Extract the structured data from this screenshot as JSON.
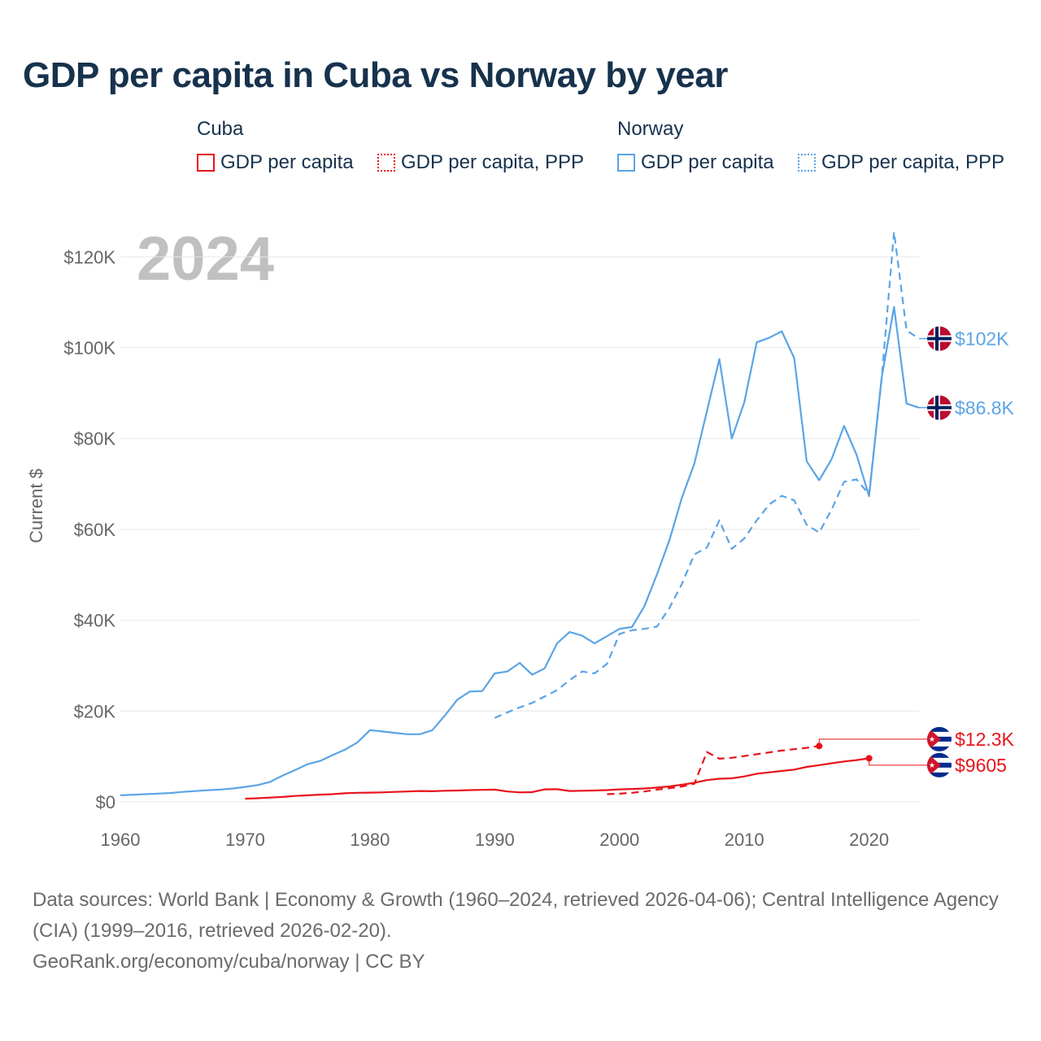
{
  "title": "GDP per capita in Cuba vs Norway by year",
  "legend": {
    "groups": [
      {
        "name": "Cuba",
        "color": "#e8131b",
        "items": [
          {
            "label": "GDP per capita",
            "style": "solid"
          },
          {
            "label": "GDP per capita, PPP",
            "style": "dotted"
          }
        ]
      },
      {
        "name": "Norway",
        "color": "#5ba4e6",
        "items": [
          {
            "label": "GDP per capita",
            "style": "solid"
          },
          {
            "label": "GDP per capita, PPP",
            "style": "dotted"
          }
        ]
      }
    ]
  },
  "chart_data": {
    "type": "line",
    "year_label": "2024",
    "ylabel": "Current $",
    "xlim": [
      1960,
      2024
    ],
    "ylim": [
      0,
      130000
    ],
    "x_ticks": [
      1960,
      1970,
      1980,
      1990,
      2000,
      2010,
      2020
    ],
    "x_tick_labels": [
      "1960",
      "1970",
      "1980",
      "1990",
      "2000",
      "2010",
      "2020"
    ],
    "y_ticks": [
      0,
      20000,
      40000,
      60000,
      80000,
      100000,
      120000
    ],
    "y_tick_labels": [
      "$0",
      "$20K",
      "$40K",
      "$60K",
      "$80K",
      "$100K",
      "$120K"
    ],
    "series": [
      {
        "name": "Norway GDP per capita",
        "color": "#5ba4e6",
        "dash": false,
        "x": [
          1960,
          1961,
          1962,
          1963,
          1964,
          1965,
          1966,
          1967,
          1968,
          1969,
          1970,
          1971,
          1972,
          1973,
          1974,
          1975,
          1976,
          1977,
          1978,
          1979,
          1980,
          1981,
          1982,
          1983,
          1984,
          1985,
          1986,
          1987,
          1988,
          1989,
          1990,
          1991,
          1992,
          1993,
          1994,
          1995,
          1996,
          1997,
          1998,
          1999,
          2000,
          2001,
          2002,
          2003,
          2004,
          2005,
          2006,
          2007,
          2008,
          2009,
          2010,
          2011,
          2012,
          2013,
          2014,
          2015,
          2016,
          2017,
          2018,
          2019,
          2020,
          2021,
          2022,
          2023,
          2024
        ],
        "y": [
          1450,
          1580,
          1700,
          1820,
          1960,
          2200,
          2380,
          2580,
          2730,
          2960,
          3300,
          3700,
          4400,
          5800,
          7000,
          8300,
          9000,
          10300,
          11500,
          13100,
          15800,
          15500,
          15200,
          14900,
          14900,
          15800,
          19000,
          22500,
          24300,
          24400,
          28300,
          28700,
          30600,
          28000,
          29400,
          34900,
          37400,
          36600,
          34900,
          36500,
          38100,
          38500,
          43100,
          50100,
          57600,
          67000,
          74500,
          86000,
          97500,
          80000,
          88000,
          101200,
          102200,
          103600,
          97700,
          75000,
          70800,
          75500,
          82800,
          76400,
          67300,
          93300,
          109000,
          87700,
          86800
        ],
        "end_label": "$86.8K"
      },
      {
        "name": "Norway GDP per capita, PPP",
        "color": "#5ba4e6",
        "dash": true,
        "x": [
          1990,
          1991,
          1992,
          1993,
          1994,
          1995,
          1996,
          1997,
          1998,
          1999,
          2000,
          2001,
          2002,
          2003,
          2004,
          2005,
          2006,
          2007,
          2008,
          2009,
          2010,
          2011,
          2012,
          2013,
          2014,
          2015,
          2016,
          2017,
          2018,
          2019,
          2020,
          2021,
          2022,
          2023,
          2024
        ],
        "y": [
          18500,
          19700,
          20800,
          21800,
          23200,
          24600,
          26800,
          28700,
          28300,
          30400,
          37000,
          37800,
          38100,
          38600,
          42700,
          48000,
          54500,
          56000,
          62000,
          55700,
          58000,
          62000,
          65500,
          67400,
          66400,
          61000,
          59300,
          64400,
          70500,
          71000,
          67700,
          93000,
          125500,
          103800,
          102000
        ],
        "end_label": "$102K"
      },
      {
        "name": "Cuba GDP per capita",
        "color": "#e8131b",
        "dash": false,
        "x": [
          1970,
          1971,
          1972,
          1973,
          1974,
          1975,
          1976,
          1977,
          1978,
          1979,
          1980,
          1981,
          1982,
          1983,
          1984,
          1985,
          1986,
          1987,
          1988,
          1989,
          1990,
          1991,
          1992,
          1993,
          1994,
          1995,
          1996,
          1997,
          1998,
          1999,
          2000,
          2001,
          2002,
          2003,
          2004,
          2005,
          2006,
          2007,
          2008,
          2009,
          2010,
          2011,
          2012,
          2013,
          2014,
          2015,
          2016,
          2017,
          2018,
          2019,
          2020
        ],
        "y": [
          700,
          800,
          950,
          1100,
          1300,
          1450,
          1600,
          1700,
          1900,
          2000,
          2050,
          2100,
          2200,
          2300,
          2400,
          2350,
          2450,
          2500,
          2600,
          2650,
          2700,
          2300,
          2100,
          2150,
          2750,
          2800,
          2400,
          2450,
          2500,
          2600,
          2750,
          2850,
          2950,
          3150,
          3400,
          3800,
          4200,
          4800,
          5100,
          5200,
          5600,
          6200,
          6500,
          6800,
          7100,
          7700,
          8100,
          8500,
          8900,
          9200,
          9605
        ],
        "end_label": "$9605"
      },
      {
        "name": "Cuba GDP per capita, PPP",
        "color": "#e8131b",
        "dash": true,
        "x": [
          1999,
          2000,
          2001,
          2002,
          2003,
          2004,
          2005,
          2006,
          2007,
          2008,
          2009,
          2010,
          2011,
          2012,
          2013,
          2014,
          2015,
          2016
        ],
        "y": [
          1700,
          1800,
          2000,
          2300,
          2700,
          3000,
          3400,
          4000,
          11000,
          9500,
          9700,
          10100,
          10500,
          10900,
          11300,
          11600,
          11900,
          12300
        ],
        "end_label": "$12.3K"
      }
    ]
  },
  "footer": {
    "line1": "Data sources: World Bank | Economy & Growth (1960–2024, retrieved 2026-04-06); Central Intelligence Agency (CIA) (1999–2016, retrieved 2026-02-20).",
    "line2": "GeoRank.org/economy/cuba/norway | CC BY"
  }
}
